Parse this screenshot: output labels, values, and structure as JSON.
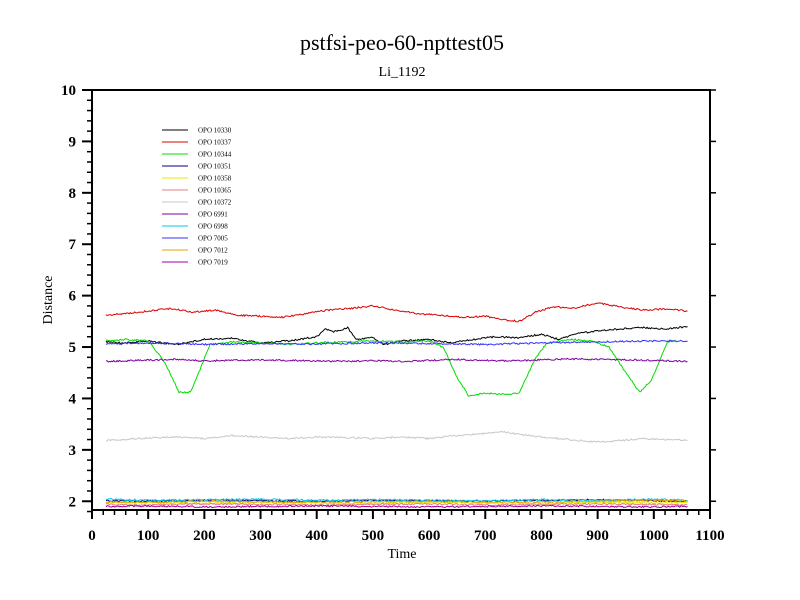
{
  "chart_data": {
    "type": "line",
    "title": "pstfsi-peo-60-npttest05",
    "subtitle": "Li_1192",
    "xlabel": "Time",
    "ylabel": "Distance",
    "xlim": [
      0,
      1100
    ],
    "ylim": [
      1.83,
      10
    ],
    "xticks": [
      "0",
      "100",
      "200",
      "300",
      "400",
      "500",
      "600",
      "700",
      "800",
      "900",
      "1000",
      "1100"
    ],
    "yticks": [
      "2",
      "3",
      "4",
      "5",
      "6",
      "7",
      "8",
      "9",
      "10"
    ],
    "legend_position": "top-left",
    "series": [
      {
        "name": "OPO 10330",
        "color": "#000000",
        "points": [
          [
            25,
            5.1
          ],
          [
            60,
            5.08
          ],
          [
            100,
            5.12
          ],
          [
            150,
            5.05
          ],
          [
            200,
            5.15
          ],
          [
            250,
            5.17
          ],
          [
            300,
            5.08
          ],
          [
            350,
            5.12
          ],
          [
            400,
            5.2
          ],
          [
            415,
            5.35
          ],
          [
            430,
            5.3
          ],
          [
            440,
            5.32
          ],
          [
            455,
            5.38
          ],
          [
            470,
            5.15
          ],
          [
            500,
            5.18
          ],
          [
            520,
            5.05
          ],
          [
            550,
            5.12
          ],
          [
            600,
            5.15
          ],
          [
            640,
            5.08
          ],
          [
            680,
            5.15
          ],
          [
            720,
            5.2
          ],
          [
            760,
            5.18
          ],
          [
            800,
            5.25
          ],
          [
            830,
            5.15
          ],
          [
            860,
            5.25
          ],
          [
            900,
            5.32
          ],
          [
            940,
            5.35
          ],
          [
            980,
            5.38
          ],
          [
            1020,
            5.35
          ],
          [
            1060,
            5.4
          ]
        ]
      },
      {
        "name": "OPO 10337",
        "color": "#dd0000",
        "points": [
          [
            25,
            5.62
          ],
          [
            60,
            5.65
          ],
          [
            100,
            5.7
          ],
          [
            140,
            5.75
          ],
          [
            180,
            5.68
          ],
          [
            220,
            5.72
          ],
          [
            260,
            5.62
          ],
          [
            300,
            5.6
          ],
          [
            340,
            5.58
          ],
          [
            380,
            5.65
          ],
          [
            420,
            5.72
          ],
          [
            460,
            5.75
          ],
          [
            500,
            5.8
          ],
          [
            540,
            5.72
          ],
          [
            580,
            5.65
          ],
          [
            620,
            5.62
          ],
          [
            660,
            5.58
          ],
          [
            700,
            5.6
          ],
          [
            740,
            5.52
          ],
          [
            760,
            5.5
          ],
          [
            790,
            5.68
          ],
          [
            820,
            5.78
          ],
          [
            860,
            5.76
          ],
          [
            900,
            5.86
          ],
          [
            940,
            5.78
          ],
          [
            980,
            5.72
          ],
          [
            1020,
            5.74
          ],
          [
            1060,
            5.7
          ]
        ]
      },
      {
        "name": "OPO 10344",
        "color": "#00dd00",
        "points": [
          [
            25,
            5.12
          ],
          [
            60,
            5.15
          ],
          [
            100,
            5.12
          ],
          [
            130,
            4.7
          ],
          [
            155,
            4.12
          ],
          [
            175,
            4.12
          ],
          [
            190,
            4.5
          ],
          [
            210,
            5.05
          ],
          [
            250,
            5.1
          ],
          [
            300,
            5.08
          ],
          [
            350,
            5.05
          ],
          [
            400,
            5.08
          ],
          [
            450,
            5.1
          ],
          [
            500,
            5.12
          ],
          [
            550,
            5.1
          ],
          [
            600,
            5.12
          ],
          [
            625,
            5.0
          ],
          [
            650,
            4.4
          ],
          [
            670,
            4.06
          ],
          [
            700,
            4.1
          ],
          [
            740,
            4.08
          ],
          [
            760,
            4.1
          ],
          [
            790,
            4.8
          ],
          [
            810,
            5.08
          ],
          [
            850,
            5.15
          ],
          [
            890,
            5.12
          ],
          [
            920,
            5.0
          ],
          [
            950,
            4.5
          ],
          [
            975,
            4.12
          ],
          [
            995,
            4.35
          ],
          [
            1025,
            5.1
          ],
          [
            1040,
            5.12
          ]
        ]
      },
      {
        "name": "OPO 10351",
        "color": "#000080",
        "points": [
          [
            25,
            2.01
          ],
          [
            100,
            2.0
          ],
          [
            200,
            2.02
          ],
          [
            300,
            2.01
          ],
          [
            400,
            2.0
          ],
          [
            500,
            2.02
          ],
          [
            600,
            2.01
          ],
          [
            700,
            2.0
          ],
          [
            800,
            2.02
          ],
          [
            900,
            2.03
          ],
          [
            1000,
            2.01
          ],
          [
            1060,
            2.0
          ]
        ]
      },
      {
        "name": "OPO 10358",
        "color": "#e8e800",
        "points": [
          [
            25,
            1.97
          ],
          [
            100,
            1.98
          ],
          [
            200,
            1.96
          ],
          [
            300,
            1.98
          ],
          [
            400,
            1.97
          ],
          [
            500,
            1.96
          ],
          [
            600,
            1.98
          ],
          [
            700,
            1.97
          ],
          [
            800,
            1.96
          ],
          [
            900,
            1.98
          ],
          [
            1000,
            1.97
          ],
          [
            1060,
            1.98
          ]
        ]
      },
      {
        "name": "OPO 10365",
        "color": "#e08080",
        "points": [
          [
            25,
            1.94
          ],
          [
            100,
            1.93
          ],
          [
            200,
            1.95
          ],
          [
            300,
            1.94
          ],
          [
            400,
            1.93
          ],
          [
            500,
            1.94
          ],
          [
            600,
            1.95
          ],
          [
            700,
            1.93
          ],
          [
            800,
            1.94
          ],
          [
            900,
            1.95
          ],
          [
            1000,
            1.94
          ],
          [
            1060,
            1.93
          ]
        ]
      },
      {
        "name": "OPO 10372",
        "color": "#c8c8c8",
        "points": [
          [
            25,
            3.18
          ],
          [
            80,
            3.22
          ],
          [
            150,
            3.25
          ],
          [
            200,
            3.22
          ],
          [
            250,
            3.28
          ],
          [
            300,
            3.25
          ],
          [
            350,
            3.22
          ],
          [
            400,
            3.25
          ],
          [
            450,
            3.24
          ],
          [
            500,
            3.22
          ],
          [
            550,
            3.25
          ],
          [
            600,
            3.22
          ],
          [
            650,
            3.28
          ],
          [
            700,
            3.32
          ],
          [
            730,
            3.36
          ],
          [
            760,
            3.3
          ],
          [
            800,
            3.25
          ],
          [
            850,
            3.2
          ],
          [
            900,
            3.15
          ],
          [
            940,
            3.18
          ],
          [
            980,
            3.22
          ],
          [
            1020,
            3.2
          ],
          [
            1060,
            3.19
          ]
        ]
      },
      {
        "name": "OPO 6991",
        "color": "#8000a0",
        "points": [
          [
            25,
            4.72
          ],
          [
            80,
            4.74
          ],
          [
            150,
            4.76
          ],
          [
            200,
            4.73
          ],
          [
            250,
            4.74
          ],
          [
            300,
            4.75
          ],
          [
            350,
            4.74
          ],
          [
            400,
            4.73
          ],
          [
            450,
            4.72
          ],
          [
            500,
            4.74
          ],
          [
            550,
            4.72
          ],
          [
            600,
            4.74
          ],
          [
            650,
            4.76
          ],
          [
            700,
            4.74
          ],
          [
            750,
            4.73
          ],
          [
            800,
            4.75
          ],
          [
            850,
            4.77
          ],
          [
            900,
            4.76
          ],
          [
            950,
            4.75
          ],
          [
            1000,
            4.74
          ],
          [
            1060,
            4.72
          ]
        ]
      },
      {
        "name": "OPO 6998",
        "color": "#00c8e8",
        "points": [
          [
            25,
            2.04
          ],
          [
            100,
            2.02
          ],
          [
            200,
            2.03
          ],
          [
            300,
            2.04
          ],
          [
            400,
            2.02
          ],
          [
            500,
            2.03
          ],
          [
            600,
            2.02
          ],
          [
            700,
            2.01
          ],
          [
            800,
            2.03
          ],
          [
            900,
            2.02
          ],
          [
            1000,
            2.04
          ],
          [
            1060,
            2.02
          ]
        ]
      },
      {
        "name": "OPO 7005",
        "color": "#3030ff",
        "points": [
          [
            25,
            5.06
          ],
          [
            100,
            5.08
          ],
          [
            200,
            5.05
          ],
          [
            300,
            5.07
          ],
          [
            400,
            5.06
          ],
          [
            500,
            5.08
          ],
          [
            600,
            5.07
          ],
          [
            700,
            5.05
          ],
          [
            800,
            5.08
          ],
          [
            900,
            5.1
          ],
          [
            1000,
            5.12
          ],
          [
            1060,
            5.12
          ]
        ]
      },
      {
        "name": "OPO 7012",
        "color": "#e8a000",
        "points": [
          [
            25,
            1.99
          ],
          [
            100,
            1.98
          ],
          [
            200,
            2.0
          ],
          [
            300,
            1.99
          ],
          [
            400,
            1.98
          ],
          [
            500,
            1.99
          ],
          [
            600,
            2.0
          ],
          [
            700,
            1.98
          ],
          [
            800,
            1.99
          ],
          [
            900,
            2.0
          ],
          [
            1000,
            2.02
          ],
          [
            1060,
            2.01
          ]
        ]
      },
      {
        "name": "OPO 7019",
        "color": "#a000a0",
        "points": [
          [
            25,
            1.9
          ],
          [
            100,
            1.91
          ],
          [
            200,
            1.89
          ],
          [
            300,
            1.9
          ],
          [
            400,
            1.91
          ],
          [
            500,
            1.9
          ],
          [
            600,
            1.89
          ],
          [
            700,
            1.9
          ],
          [
            800,
            1.91
          ],
          [
            900,
            1.9
          ],
          [
            1000,
            1.89
          ],
          [
            1060,
            1.9
          ]
        ]
      }
    ]
  }
}
